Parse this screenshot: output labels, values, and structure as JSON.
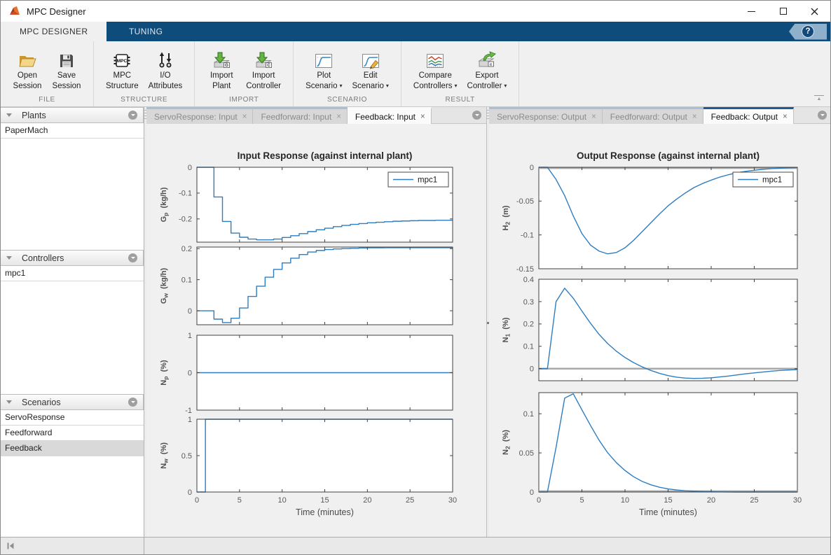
{
  "window": {
    "title": "MPC Designer"
  },
  "glyphs": {
    "close_tab": "×",
    "dropdown": "▾",
    "collapse_ribbon": "▲",
    "help": "?"
  },
  "ribbon": {
    "tabs": [
      {
        "label": "MPC DESIGNER"
      },
      {
        "label": "TUNING"
      }
    ],
    "active_tab": "MPC DESIGNER",
    "groups": [
      {
        "label": "FILE",
        "buttons": [
          {
            "line1": "Open",
            "line2": "Session",
            "icon": "open-folder-icon",
            "dropdown": false
          },
          {
            "line1": "Save",
            "line2": "Session",
            "icon": "save-disk-icon",
            "dropdown": false
          }
        ]
      },
      {
        "label": "STRUCTURE",
        "buttons": [
          {
            "line1": "MPC",
            "line2": "Structure",
            "icon": "mpc-block-icon",
            "dropdown": false
          },
          {
            "line1": "I/O",
            "line2": "Attributes",
            "icon": "io-attributes-icon",
            "dropdown": false
          }
        ]
      },
      {
        "label": "IMPORT",
        "buttons": [
          {
            "line1": "Import",
            "line2": "Plant",
            "icon": "import-plant-icon",
            "dropdown": false
          },
          {
            "line1": "Import",
            "line2": "Controller",
            "icon": "import-controller-icon",
            "dropdown": false
          }
        ]
      },
      {
        "label": "SCENARIO",
        "buttons": [
          {
            "line1": "Plot",
            "line2": "Scenario",
            "icon": "plot-scenario-icon",
            "dropdown": true
          },
          {
            "line1": "Edit",
            "line2": "Scenario",
            "icon": "edit-scenario-icon",
            "dropdown": true
          }
        ]
      },
      {
        "label": "RESULT",
        "buttons": [
          {
            "line1": "Compare",
            "line2": "Controllers",
            "icon": "compare-controllers-icon",
            "dropdown": true
          },
          {
            "line1": "Export",
            "line2": "Controller",
            "icon": "export-controller-icon",
            "dropdown": true
          }
        ]
      }
    ]
  },
  "sidebar": {
    "sections": [
      {
        "title": "Plants",
        "items": [
          "PaperMach"
        ]
      },
      {
        "title": "Controllers",
        "items": [
          "mpc1"
        ]
      },
      {
        "title": "Scenarios",
        "items": [
          "ServoResponse",
          "Feedforward",
          "Feedback"
        ],
        "selected": "Feedback"
      }
    ]
  },
  "left_pane": {
    "tabs": [
      "ServoResponse: Input",
      "Feedforward: Input",
      "Feedback: Input"
    ],
    "active_tab": "Feedback: Input"
  },
  "right_pane": {
    "tabs": [
      "ServoResponse: Output",
      "Feedforward: Output",
      "Feedback: Output"
    ],
    "active_tab": "Feedback: Output"
  },
  "colors": {
    "toolstrip_blue": "#0e4c7c",
    "line_blue": "#2e7dc0",
    "refline_gray": "#a9a9a9",
    "selected_row": "#d9d9d9"
  },
  "chart_data": [
    {
      "type": "line",
      "pane": "left",
      "title": "Input Response (against internal plant)",
      "xlabel": "Time (minutes)",
      "xlim": [
        0,
        30
      ],
      "xticks": [
        0,
        5,
        10,
        15,
        20,
        25,
        30
      ],
      "grid": false,
      "legend": {
        "entries": [
          "mpc1"
        ],
        "position": "top-right"
      },
      "subplots": [
        {
          "ylabel": {
            "sym": "G",
            "sub": "p",
            "unit": "(kg/h)"
          },
          "ylim": [
            -0.29,
            0
          ],
          "yticks": [
            0,
            -0.1,
            -0.2
          ],
          "mode": "stairs",
          "ref_line": null,
          "legend": true,
          "xticklabels": false,
          "xlabel_here": false,
          "t": [
            0,
            2,
            3,
            4,
            5,
            6,
            7,
            8,
            9,
            10,
            11,
            12,
            13,
            14,
            15,
            16,
            17,
            18,
            19,
            20,
            21,
            22,
            23,
            24,
            25,
            26,
            27,
            28,
            29,
            30
          ],
          "v": [
            0,
            -0.115,
            -0.21,
            -0.255,
            -0.271,
            -0.278,
            -0.281,
            -0.281,
            -0.278,
            -0.272,
            -0.265,
            -0.257,
            -0.249,
            -0.242,
            -0.236,
            -0.23,
            -0.225,
            -0.221,
            -0.218,
            -0.215,
            -0.213,
            -0.211,
            -0.209,
            -0.208,
            -0.207,
            -0.206,
            -0.206,
            -0.205,
            -0.205,
            -0.205
          ]
        },
        {
          "ylabel": {
            "sym": "G",
            "sub": "w",
            "unit": "(kg/h)"
          },
          "ylim": [
            -0.045,
            0.205
          ],
          "yticks": [
            0.2,
            0.1,
            0
          ],
          "mode": "stairs",
          "ref_line": null,
          "legend": false,
          "xticklabels": false,
          "xlabel_here": false,
          "t": [
            0,
            2,
            3,
            4,
            5,
            6,
            7,
            8,
            9,
            10,
            11,
            12,
            13,
            14,
            15,
            16,
            17,
            18,
            19,
            20,
            21,
            22,
            23,
            24,
            25,
            26,
            27,
            28,
            29,
            30
          ],
          "v": [
            0,
            -0.027,
            -0.038,
            -0.024,
            0.009,
            0.046,
            0.079,
            0.108,
            0.133,
            0.154,
            0.169,
            0.181,
            0.189,
            0.194,
            0.197,
            0.199,
            0.2,
            0.201,
            0.202,
            0.2025,
            0.2025,
            0.203,
            0.203,
            0.203,
            0.203,
            0.203,
            0.203,
            0.203,
            0.203,
            0.203
          ]
        },
        {
          "ylabel": {
            "sym": "N",
            "sub": "p",
            "unit": "(%)"
          },
          "ylim": [
            -1,
            1
          ],
          "yticks": [
            1,
            0,
            -1
          ],
          "mode": "line",
          "ref_line": null,
          "legend": false,
          "xticklabels": false,
          "xlabel_here": false,
          "t": [
            0,
            30
          ],
          "v": [
            0,
            0
          ]
        },
        {
          "ylabel": {
            "sym": "N",
            "sub": "w",
            "unit": "(%)"
          },
          "ylim": [
            0,
            1
          ],
          "yticks": [
            1,
            0.5,
            0
          ],
          "mode": "stairs",
          "ref_line": null,
          "legend": false,
          "xticklabels": true,
          "xlabel_here": true,
          "t": [
            0,
            1,
            30
          ],
          "v": [
            0,
            1,
            1
          ]
        }
      ]
    },
    {
      "type": "line",
      "pane": "right",
      "title": "Output Response (against internal plant)",
      "xlabel": "Time (minutes)",
      "xlim": [
        0,
        30
      ],
      "xticks": [
        0,
        5,
        10,
        15,
        20,
        25,
        30
      ],
      "grid": false,
      "legend": {
        "entries": [
          "mpc1"
        ],
        "position": "top-right"
      },
      "subplots": [
        {
          "ylabel": {
            "sym": "H",
            "sub": "2",
            "unit": "(m)"
          },
          "ylim": [
            -0.15,
            0
          ],
          "yticks": [
            0,
            -0.05,
            -0.1,
            -0.15
          ],
          "mode": "line",
          "ref_line": 0,
          "legend": true,
          "xticklabels": false,
          "xlabel_here": false,
          "t": [
            0,
            1,
            2,
            3,
            4,
            5,
            6,
            7,
            8,
            9,
            10,
            11,
            12,
            13,
            14,
            15,
            16,
            17,
            18,
            19,
            20,
            21,
            22,
            23,
            24,
            25,
            26,
            27,
            28,
            29,
            30
          ],
          "v": [
            0,
            0,
            -0.018,
            -0.042,
            -0.072,
            -0.098,
            -0.115,
            -0.124,
            -0.128,
            -0.126,
            -0.119,
            -0.108,
            -0.095,
            -0.082,
            -0.069,
            -0.057,
            -0.047,
            -0.038,
            -0.03,
            -0.024,
            -0.019,
            -0.0145,
            -0.011,
            -0.008,
            -0.006,
            -0.0045,
            -0.003,
            -0.002,
            -0.0013,
            -0.0008,
            -0.0005
          ]
        },
        {
          "ylabel": {
            "sym": "N",
            "sub": "1",
            "unit": "(%)"
          },
          "ylim": [
            -0.054,
            0.4
          ],
          "yticks": [
            0.4,
            0.3,
            0.2,
            0.1,
            0
          ],
          "mode": "line",
          "ref_line": 0,
          "legend": false,
          "xticklabels": false,
          "xlabel_here": false,
          "t": [
            0,
            1,
            2,
            3,
            4,
            5,
            6,
            7,
            8,
            9,
            10,
            11,
            12,
            13,
            14,
            15,
            16,
            17,
            18,
            19,
            20,
            21,
            22,
            23,
            24,
            25,
            26,
            27,
            28,
            29,
            30
          ],
          "v": [
            0,
            0,
            0.3,
            0.36,
            0.315,
            0.258,
            0.203,
            0.153,
            0.112,
            0.078,
            0.05,
            0.027,
            0.008,
            -0.008,
            -0.021,
            -0.031,
            -0.038,
            -0.042,
            -0.0435,
            -0.043,
            -0.041,
            -0.037,
            -0.033,
            -0.028,
            -0.023,
            -0.019,
            -0.015,
            -0.011,
            -0.008,
            -0.006,
            -0.004
          ]
        },
        {
          "ylabel": {
            "sym": "N",
            "sub": "2",
            "unit": "(%)"
          },
          "ylim": [
            0,
            0.127
          ],
          "yticks": [
            0.1,
            0.05,
            0
          ],
          "mode": "line",
          "ref_line": 0,
          "legend": false,
          "xticklabels": true,
          "xlabel_here": true,
          "t": [
            0,
            1,
            2,
            3,
            4,
            5,
            6,
            7,
            8,
            9,
            10,
            11,
            12,
            13,
            14,
            15,
            16,
            17,
            18,
            19,
            20,
            21,
            22,
            23,
            24,
            25,
            26,
            27,
            28,
            29,
            30
          ],
          "v": [
            0,
            0,
            0.057,
            0.12,
            0.1255,
            0.105,
            0.085,
            0.066,
            0.05,
            0.0375,
            0.0275,
            0.0195,
            0.0135,
            0.0092,
            0.0061,
            0.004,
            0.0026,
            0.0016,
            0.001,
            0.0006,
            0.0004,
            0.0002,
            0.0001,
            0,
            0,
            0,
            0,
            0,
            0,
            0,
            0
          ]
        }
      ]
    }
  ]
}
